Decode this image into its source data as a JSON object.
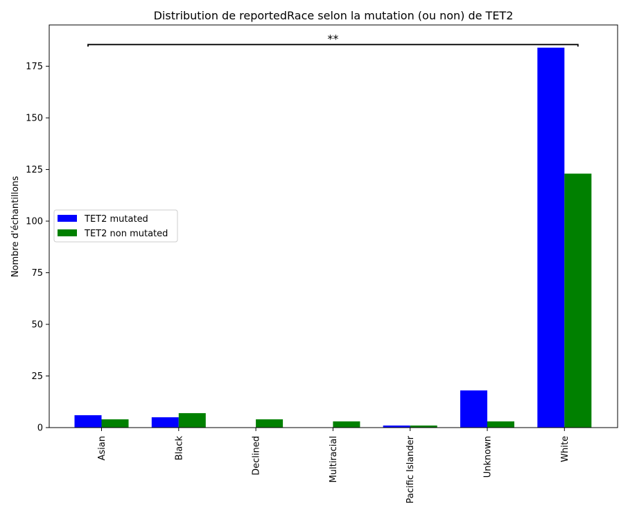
{
  "chart_data": {
    "type": "bar",
    "title": "Distribution de reportedRace selon la mutation (ou non) de TET2",
    "xlabel": "",
    "ylabel": "Nombre d'échantillons",
    "categories": [
      "Asian",
      "Black",
      "Declined",
      "Multiracial",
      "Pacific Islander",
      "Unknown",
      "White"
    ],
    "series": [
      {
        "name": "TET2 mutated",
        "color": "#0000ff",
        "values": [
          6,
          5,
          0,
          0,
          1,
          18,
          184
        ]
      },
      {
        "name": "TET2 non mutated",
        "color": "#008000",
        "values": [
          4,
          7,
          4,
          3,
          1,
          3,
          123
        ]
      }
    ],
    "ylim": [
      0,
      195
    ],
    "yticks": [
      0,
      25,
      50,
      75,
      100,
      125,
      150,
      175
    ],
    "legend_position": "center-left",
    "grid": false,
    "annotation": {
      "text": "**",
      "from_category": "Asian",
      "to_category": "White",
      "y": 185.5
    }
  }
}
